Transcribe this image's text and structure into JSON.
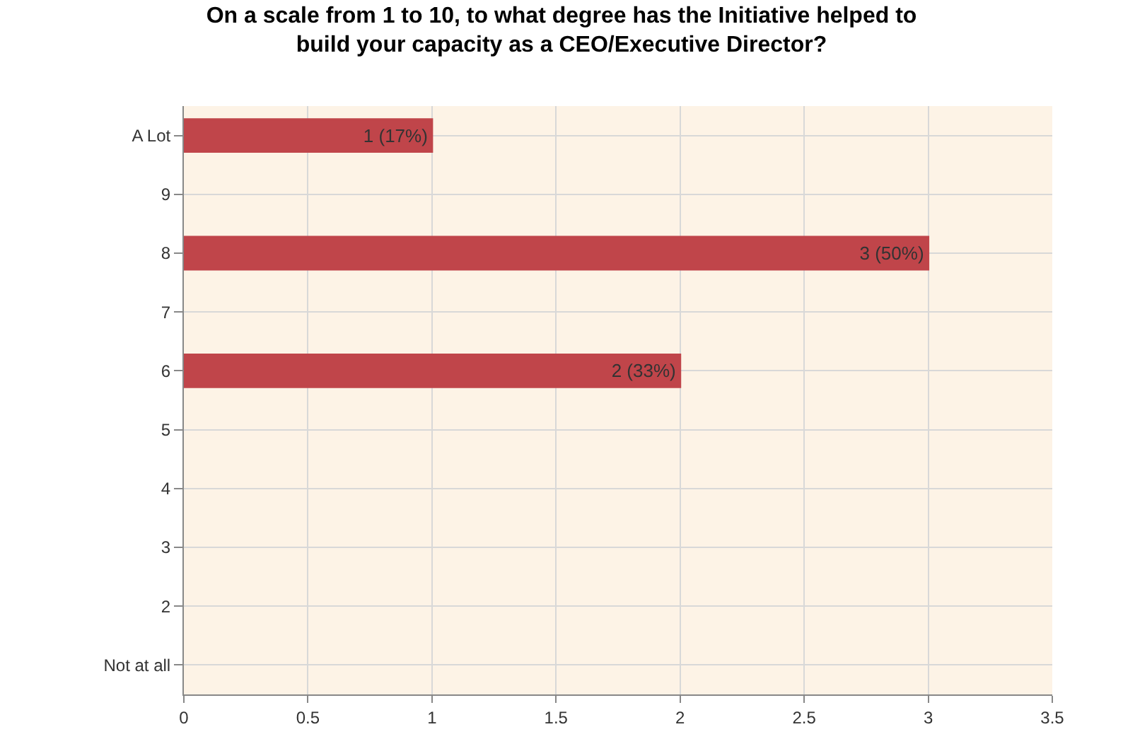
{
  "chart_data": {
    "type": "bar",
    "orientation": "horizontal",
    "title": "On a scale from 1 to 10, to what degree has the Initiative helped to build your capacity as a CEO/Executive Director?",
    "categories": [
      "A Lot",
      "9",
      "8",
      "7",
      "6",
      "5",
      "4",
      "3",
      "2",
      "Not at all"
    ],
    "values": [
      1,
      0,
      3,
      0,
      2,
      0,
      0,
      0,
      0,
      0
    ],
    "value_labels": [
      "1 (17%)",
      null,
      "3 (50%)",
      null,
      "2 (33%)",
      null,
      null,
      null,
      null,
      null
    ],
    "color": "#c0454a",
    "xlim": [
      0,
      3.5
    ],
    "xticks": [
      0,
      0.5,
      1,
      1.5,
      2,
      2.5,
      3,
      3.5
    ],
    "grid": true,
    "legend": false
  }
}
